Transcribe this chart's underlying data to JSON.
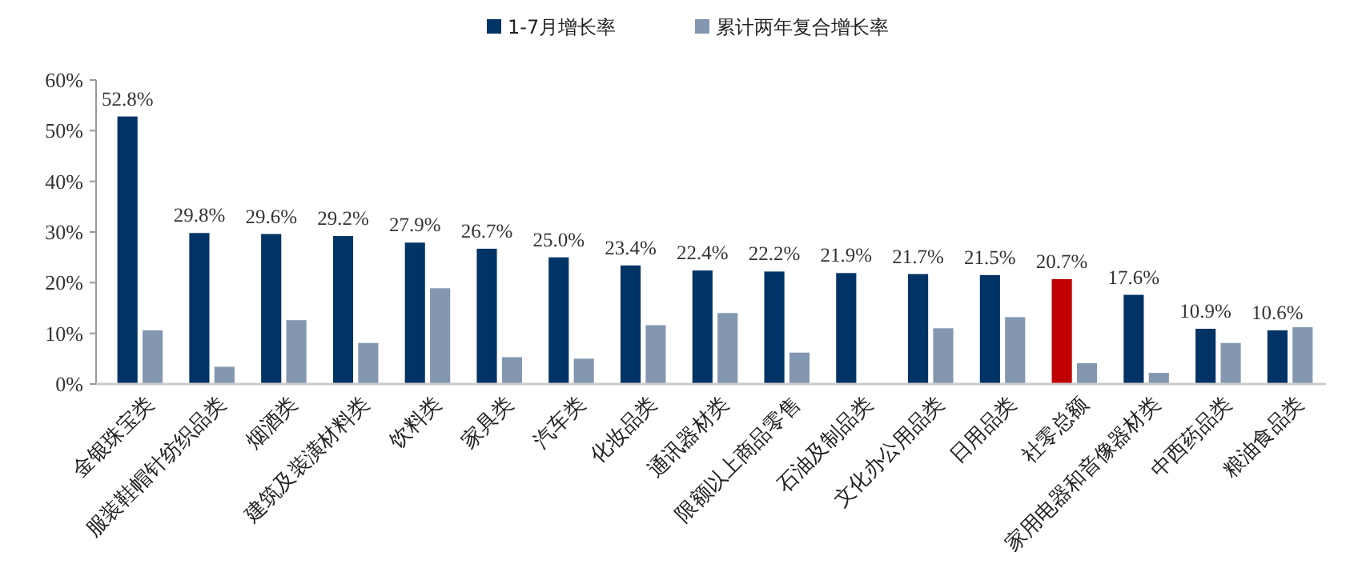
{
  "chart_data": {
    "type": "bar",
    "categories": [
      "金银珠宝类",
      "服装鞋帽针纺织品类",
      "烟酒类",
      "建筑及装潢材料类",
      "饮料类",
      "家具类",
      "汽车类",
      "化妆品类",
      "通讯器材类",
      "限额以上商品零售",
      "石油及制品类",
      "文化办公用品类",
      "日用品类",
      "社零总额",
      "家用电器和音像器材类",
      "中西药品类",
      "粮油食品类"
    ],
    "series": [
      {
        "name": "1-7月增长率",
        "color": "#003366",
        "colors": [
          "#003366",
          "#003366",
          "#003366",
          "#003366",
          "#003366",
          "#003366",
          "#003366",
          "#003366",
          "#003366",
          "#003366",
          "#003366",
          "#003366",
          "#003366",
          "#c00000",
          "#003366",
          "#003366",
          "#003366"
        ],
        "values": [
          52.8,
          29.8,
          29.6,
          29.2,
          27.9,
          26.7,
          25.0,
          23.4,
          22.4,
          22.2,
          21.9,
          21.7,
          21.5,
          20.7,
          17.6,
          10.9,
          10.6
        ],
        "value_labels": [
          "52.8%",
          "29.8%",
          "29.6%",
          "29.2%",
          "27.9%",
          "26.7%",
          "25.0%",
          "23.4%",
          "22.4%",
          "22.2%",
          "21.9%",
          "21.7%",
          "21.5%",
          "20.7%",
          "17.6%",
          "10.9%",
          "10.6%"
        ]
      },
      {
        "name": "累计两年复合增长率",
        "color": "#8497b0",
        "values": [
          10.6,
          3.4,
          12.6,
          8.1,
          18.9,
          5.3,
          5.0,
          11.6,
          14.0,
          6.2,
          null,
          11.0,
          13.2,
          4.1,
          2.2,
          8.1,
          11.2
        ]
      }
    ],
    "ylim": [
      0,
      60
    ],
    "yticks": [
      {
        "value": 0,
        "label": "0%"
      },
      {
        "value": 10,
        "label": "10%"
      },
      {
        "value": 20,
        "label": "20%"
      },
      {
        "value": 30,
        "label": "30%"
      },
      {
        "value": 40,
        "label": "40%"
      },
      {
        "value": 50,
        "label": "50%"
      },
      {
        "value": 60,
        "label": "60%"
      }
    ],
    "grid": false,
    "legend": "top"
  }
}
